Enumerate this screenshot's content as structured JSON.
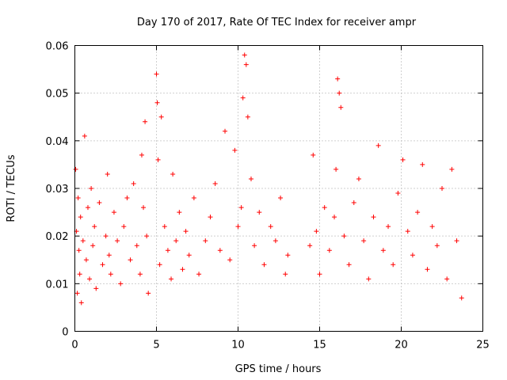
{
  "chart_data": {
    "type": "scatter",
    "title": "Day 170 of 2017, Rate Of TEC Index for receiver ampr",
    "xlabel": "GPS time / hours",
    "ylabel": "ROTI / TECUs",
    "xlim": [
      0,
      25
    ],
    "ylim": [
      0,
      0.06
    ],
    "xticks": [
      "0",
      "5",
      "10",
      "15",
      "20",
      "25"
    ],
    "yticks": [
      "0",
      "0.01",
      "0.02",
      "0.03",
      "0.04",
      "0.05",
      "0.06"
    ],
    "grid": true,
    "marker": "plus",
    "color": "#ff0000",
    "data_gap_hours": [
      13.1,
      14.3
    ],
    "series": [
      {
        "x": [
          0.05,
          0.1,
          0.15,
          0.2,
          0.25,
          0.3,
          0.35,
          0.4,
          0.5,
          0.6,
          0.7,
          0.8,
          0.9,
          1.0,
          1.1,
          1.2,
          1.3,
          1.5,
          1.7,
          1.9,
          2.0,
          2.1,
          2.2,
          2.4,
          2.6,
          2.8,
          3.0,
          3.2,
          3.4,
          3.6,
          3.8,
          4.0,
          4.1,
          4.2,
          4.3,
          4.4,
          4.5,
          5.0,
          5.05,
          5.1,
          5.2,
          5.3,
          5.5,
          5.7,
          5.9,
          6.0,
          6.2,
          6.4,
          6.6,
          6.8,
          7.0,
          7.3,
          7.6,
          8.0,
          8.3,
          8.6,
          8.9,
          9.2,
          9.5,
          9.8,
          10.0,
          10.2,
          10.3,
          10.4,
          10.5,
          10.6,
          10.8,
          11.0,
          11.3,
          11.6,
          12.0,
          12.3,
          12.6,
          12.9,
          13.05,
          14.4,
          14.6,
          14.8,
          15.0,
          15.3,
          15.6,
          15.9,
          16.0,
          16.1,
          16.2,
          16.3,
          16.5,
          16.8,
          17.1,
          17.4,
          17.7,
          18.0,
          18.3,
          18.6,
          18.9,
          19.2,
          19.5,
          19.8,
          20.1,
          20.4,
          20.7,
          21.0,
          21.3,
          21.6,
          21.9,
          22.2,
          22.5,
          22.8,
          23.1,
          23.4,
          23.7
        ],
        "y": [
          0.034,
          0.021,
          0.008,
          0.028,
          0.017,
          0.012,
          0.024,
          0.006,
          0.019,
          0.041,
          0.015,
          0.026,
          0.011,
          0.03,
          0.018,
          0.022,
          0.009,
          0.027,
          0.014,
          0.02,
          0.033,
          0.016,
          0.012,
          0.025,
          0.019,
          0.01,
          0.022,
          0.028,
          0.015,
          0.031,
          0.018,
          0.012,
          0.037,
          0.026,
          0.044,
          0.02,
          0.008,
          0.054,
          0.048,
          0.036,
          0.014,
          0.045,
          0.022,
          0.017,
          0.011,
          0.033,
          0.019,
          0.025,
          0.013,
          0.021,
          0.016,
          0.028,
          0.012,
          0.019,
          0.024,
          0.031,
          0.017,
          0.042,
          0.015,
          0.038,
          0.022,
          0.026,
          0.049,
          0.058,
          0.056,
          0.045,
          0.032,
          0.018,
          0.025,
          0.014,
          0.022,
          0.019,
          0.028,
          0.012,
          0.016,
          0.018,
          0.037,
          0.021,
          0.012,
          0.026,
          0.017,
          0.024,
          0.034,
          0.053,
          0.05,
          0.047,
          0.02,
          0.014,
          0.027,
          0.032,
          0.019,
          0.011,
          0.024,
          0.039,
          0.017,
          0.022,
          0.014,
          0.029,
          0.036,
          0.021,
          0.016,
          0.025,
          0.035,
          0.013,
          0.022,
          0.018,
          0.03,
          0.011,
          0.034,
          0.019,
          0.007
        ]
      }
    ]
  }
}
